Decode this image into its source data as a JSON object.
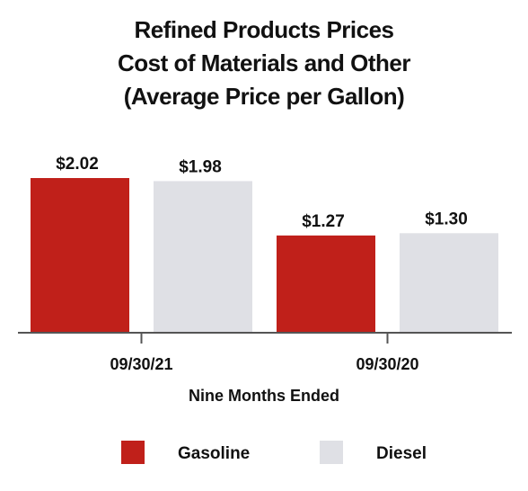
{
  "chart_data": {
    "type": "bar",
    "title_lines": [
      "Refined Products Prices",
      "Cost of Materials and Other",
      "(Average Price per Gallon)"
    ],
    "xlabel": "Nine Months Ended",
    "ylabel": "",
    "categories": [
      "09/30/21",
      "09/30/20"
    ],
    "series": [
      {
        "name": "Gasoline",
        "color": "#c0201a",
        "values": [
          2.02,
          1.27
        ],
        "labels": [
          "$2.02",
          "$1.27"
        ]
      },
      {
        "name": "Diesel",
        "color": "#dfe0e5",
        "values": [
          1.98,
          1.3
        ],
        "labels": [
          "$1.98",
          "$1.30"
        ]
      }
    ],
    "ylim": [
      0,
      2.02
    ],
    "grid": false,
    "legend_position": "bottom"
  }
}
